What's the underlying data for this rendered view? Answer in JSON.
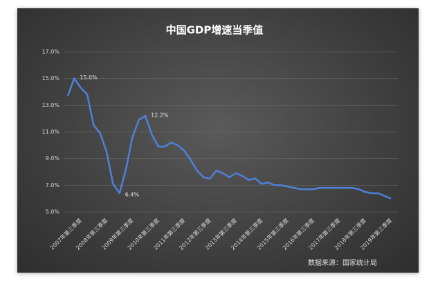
{
  "chart_data": {
    "type": "line",
    "title": "中国GDP增速当季值",
    "source": "数据来源：国家统计局",
    "categories": [
      null,
      null,
      "2007年第三季度",
      null,
      null,
      null,
      "2008年第三季度",
      null,
      null,
      null,
      "2009年第三季度",
      null,
      null,
      null,
      "2010年第三季度",
      null,
      null,
      null,
      "2011年第三季度",
      null,
      null,
      null,
      "2012年第三季度",
      null,
      null,
      null,
      "2013年第三季度",
      null,
      null,
      null,
      "2014年第三季度",
      null,
      null,
      null,
      "2015年第三季度",
      null,
      null,
      null,
      "2016年第三季度",
      null,
      null,
      null,
      "2017年第三季度",
      null,
      null,
      null,
      "2018年第三季度",
      null,
      null,
      null,
      "2019年第三季度"
    ],
    "values": [
      13.7,
      15.0,
      14.3,
      13.8,
      11.5,
      10.9,
      9.5,
      7.1,
      6.4,
      8.2,
      10.6,
      11.9,
      12.2,
      10.8,
      9.9,
      9.9,
      10.2,
      10.0,
      9.6,
      8.9,
      8.1,
      7.6,
      7.5,
      8.1,
      7.9,
      7.6,
      7.9,
      7.7,
      7.4,
      7.5,
      7.1,
      7.2,
      7.0,
      7.0,
      6.9,
      6.8,
      6.7,
      6.7,
      6.7,
      6.8,
      6.8,
      6.8,
      6.8,
      6.8,
      6.8,
      6.7,
      6.5,
      6.4,
      6.4,
      6.2,
      6.0
    ],
    "value_labels": [
      null,
      "15.0%",
      null,
      null,
      null,
      null,
      null,
      null,
      "6.4%",
      null,
      null,
      null,
      "12.2%",
      null,
      null,
      null,
      null,
      null,
      null,
      null,
      null,
      null,
      null,
      null,
      null,
      null,
      null,
      null,
      null,
      null,
      null,
      null,
      null,
      null,
      null,
      null,
      null,
      null,
      null,
      null,
      null,
      null,
      null,
      null,
      null,
      null,
      null,
      null,
      null,
      null,
      null
    ],
    "color": "#4f7fd6",
    "ylim": [
      5,
      17
    ],
    "yticks": [
      {
        "value": 5,
        "label": "5.0%"
      },
      {
        "value": 7,
        "label": "7.0%"
      },
      {
        "value": 9,
        "label": "9.0%"
      },
      {
        "value": 11,
        "label": "11.0%"
      },
      {
        "value": 13,
        "label": "13.0%"
      },
      {
        "value": 15,
        "label": "15.0%"
      },
      {
        "value": 17,
        "label": "17.0%"
      }
    ],
    "grid": true
  }
}
